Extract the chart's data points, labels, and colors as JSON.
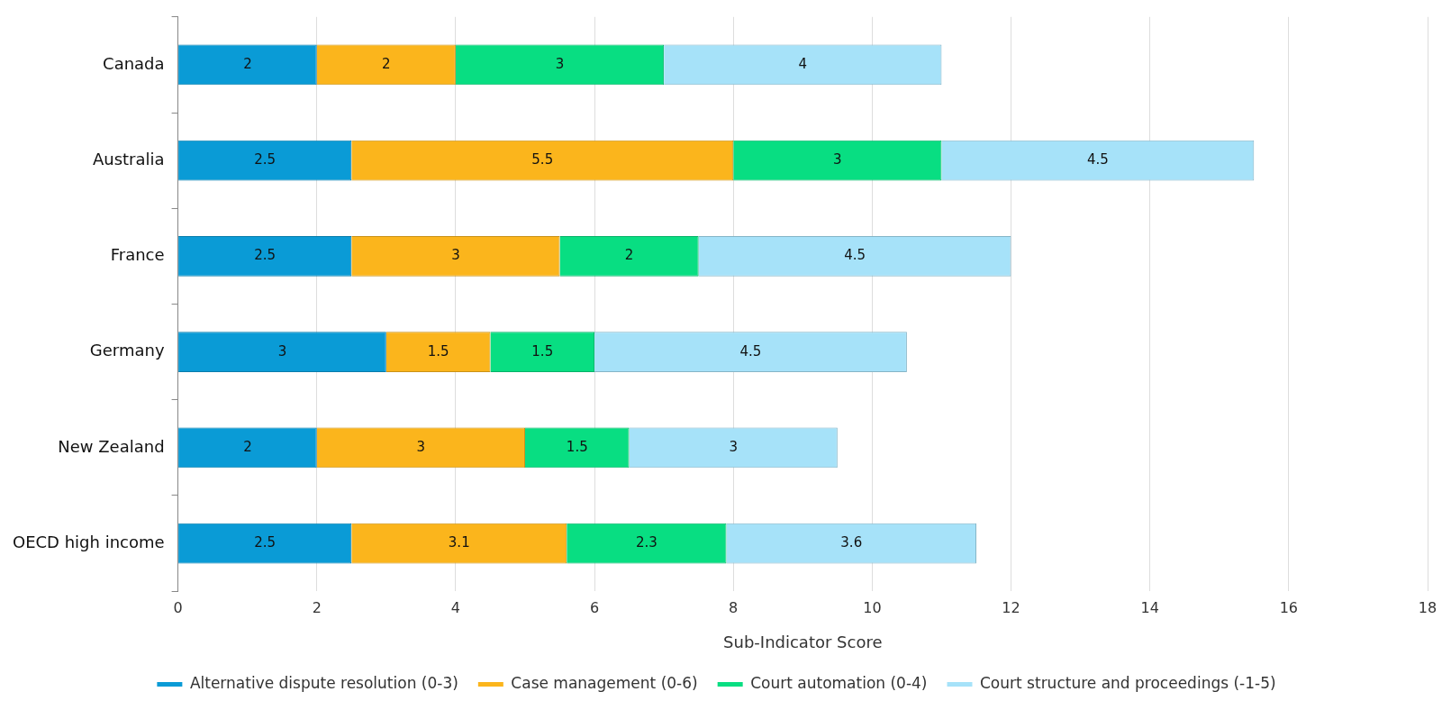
{
  "chart_data": {
    "type": "bar",
    "orientation": "horizontal",
    "stacked": true,
    "xlabel": "Sub-Indicator Score",
    "categories": [
      "Canada",
      "Australia",
      "France",
      "Germany",
      "New Zealand",
      "OECD high income"
    ],
    "series": [
      {
        "name": "Alternative dispute resolution (0-3)",
        "color": "#0a9bd6",
        "values": [
          2,
          2.5,
          2.5,
          3,
          2,
          2.5
        ]
      },
      {
        "name": "Case management (0-6)",
        "color": "#fbb51c",
        "values": [
          2,
          5.5,
          3,
          1.5,
          3,
          3.1
        ]
      },
      {
        "name": "Court automation (0-4)",
        "color": "#08de82",
        "values": [
          3,
          3,
          2,
          1.5,
          1.5,
          2.3
        ]
      },
      {
        "name": "Court structure and proceedings (-1-5)",
        "color": "#a6e2f9",
        "values": [
          4,
          4.5,
          4.5,
          4.5,
          3,
          3.6
        ]
      }
    ],
    "xlim": [
      0,
      18
    ],
    "xticks": [
      0,
      2,
      4,
      6,
      8,
      10,
      12,
      14,
      16,
      18
    ],
    "grid": "x",
    "legend": "bottom",
    "data_labels": true
  }
}
